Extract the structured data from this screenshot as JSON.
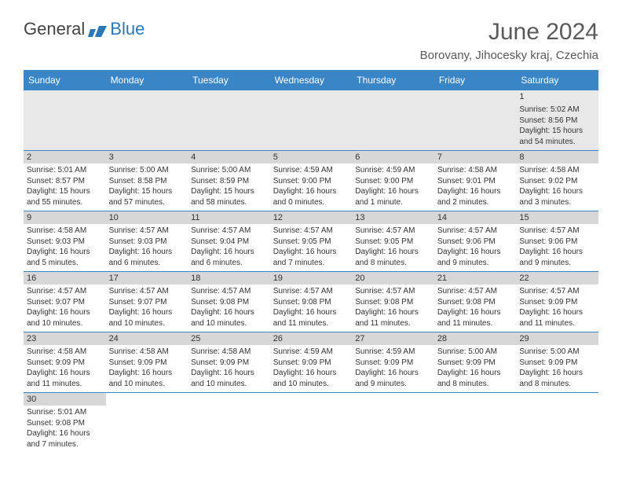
{
  "logo": {
    "part1": "General",
    "part2": "Blue"
  },
  "title": "June 2024",
  "location": "Borovany, Jihocesky kraj, Czechia",
  "header_bg": "#3a85c6",
  "band_bg": "#d7d7d7",
  "first_row_bg": "#e8e8e8",
  "weekdays": [
    "Sunday",
    "Monday",
    "Tuesday",
    "Wednesday",
    "Thursday",
    "Friday",
    "Saturday"
  ],
  "weeks": [
    [
      null,
      null,
      null,
      null,
      null,
      null,
      {
        "n": "1",
        "sr": "Sunrise: 5:02 AM",
        "ss": "Sunset: 8:56 PM",
        "dl": "Daylight: 15 hours and 54 minutes."
      }
    ],
    [
      {
        "n": "2",
        "sr": "Sunrise: 5:01 AM",
        "ss": "Sunset: 8:57 PM",
        "dl": "Daylight: 15 hours and 55 minutes."
      },
      {
        "n": "3",
        "sr": "Sunrise: 5:00 AM",
        "ss": "Sunset: 8:58 PM",
        "dl": "Daylight: 15 hours and 57 minutes."
      },
      {
        "n": "4",
        "sr": "Sunrise: 5:00 AM",
        "ss": "Sunset: 8:59 PM",
        "dl": "Daylight: 15 hours and 58 minutes."
      },
      {
        "n": "5",
        "sr": "Sunrise: 4:59 AM",
        "ss": "Sunset: 9:00 PM",
        "dl": "Daylight: 16 hours and 0 minutes."
      },
      {
        "n": "6",
        "sr": "Sunrise: 4:59 AM",
        "ss": "Sunset: 9:00 PM",
        "dl": "Daylight: 16 hours and 1 minute."
      },
      {
        "n": "7",
        "sr": "Sunrise: 4:58 AM",
        "ss": "Sunset: 9:01 PM",
        "dl": "Daylight: 16 hours and 2 minutes."
      },
      {
        "n": "8",
        "sr": "Sunrise: 4:58 AM",
        "ss": "Sunset: 9:02 PM",
        "dl": "Daylight: 16 hours and 3 minutes."
      }
    ],
    [
      {
        "n": "9",
        "sr": "Sunrise: 4:58 AM",
        "ss": "Sunset: 9:03 PM",
        "dl": "Daylight: 16 hours and 5 minutes."
      },
      {
        "n": "10",
        "sr": "Sunrise: 4:57 AM",
        "ss": "Sunset: 9:03 PM",
        "dl": "Daylight: 16 hours and 6 minutes."
      },
      {
        "n": "11",
        "sr": "Sunrise: 4:57 AM",
        "ss": "Sunset: 9:04 PM",
        "dl": "Daylight: 16 hours and 6 minutes."
      },
      {
        "n": "12",
        "sr": "Sunrise: 4:57 AM",
        "ss": "Sunset: 9:05 PM",
        "dl": "Daylight: 16 hours and 7 minutes."
      },
      {
        "n": "13",
        "sr": "Sunrise: 4:57 AM",
        "ss": "Sunset: 9:05 PM",
        "dl": "Daylight: 16 hours and 8 minutes."
      },
      {
        "n": "14",
        "sr": "Sunrise: 4:57 AM",
        "ss": "Sunset: 9:06 PM",
        "dl": "Daylight: 16 hours and 9 minutes."
      },
      {
        "n": "15",
        "sr": "Sunrise: 4:57 AM",
        "ss": "Sunset: 9:06 PM",
        "dl": "Daylight: 16 hours and 9 minutes."
      }
    ],
    [
      {
        "n": "16",
        "sr": "Sunrise: 4:57 AM",
        "ss": "Sunset: 9:07 PM",
        "dl": "Daylight: 16 hours and 10 minutes."
      },
      {
        "n": "17",
        "sr": "Sunrise: 4:57 AM",
        "ss": "Sunset: 9:07 PM",
        "dl": "Daylight: 16 hours and 10 minutes."
      },
      {
        "n": "18",
        "sr": "Sunrise: 4:57 AM",
        "ss": "Sunset: 9:08 PM",
        "dl": "Daylight: 16 hours and 10 minutes."
      },
      {
        "n": "19",
        "sr": "Sunrise: 4:57 AM",
        "ss": "Sunset: 9:08 PM",
        "dl": "Daylight: 16 hours and 11 minutes."
      },
      {
        "n": "20",
        "sr": "Sunrise: 4:57 AM",
        "ss": "Sunset: 9:08 PM",
        "dl": "Daylight: 16 hours and 11 minutes."
      },
      {
        "n": "21",
        "sr": "Sunrise: 4:57 AM",
        "ss": "Sunset: 9:08 PM",
        "dl": "Daylight: 16 hours and 11 minutes."
      },
      {
        "n": "22",
        "sr": "Sunrise: 4:57 AM",
        "ss": "Sunset: 9:09 PM",
        "dl": "Daylight: 16 hours and 11 minutes."
      }
    ],
    [
      {
        "n": "23",
        "sr": "Sunrise: 4:58 AM",
        "ss": "Sunset: 9:09 PM",
        "dl": "Daylight: 16 hours and 11 minutes."
      },
      {
        "n": "24",
        "sr": "Sunrise: 4:58 AM",
        "ss": "Sunset: 9:09 PM",
        "dl": "Daylight: 16 hours and 10 minutes."
      },
      {
        "n": "25",
        "sr": "Sunrise: 4:58 AM",
        "ss": "Sunset: 9:09 PM",
        "dl": "Daylight: 16 hours and 10 minutes."
      },
      {
        "n": "26",
        "sr": "Sunrise: 4:59 AM",
        "ss": "Sunset: 9:09 PM",
        "dl": "Daylight: 16 hours and 10 minutes."
      },
      {
        "n": "27",
        "sr": "Sunrise: 4:59 AM",
        "ss": "Sunset: 9:09 PM",
        "dl": "Daylight: 16 hours and 9 minutes."
      },
      {
        "n": "28",
        "sr": "Sunrise: 5:00 AM",
        "ss": "Sunset: 9:09 PM",
        "dl": "Daylight: 16 hours and 8 minutes."
      },
      {
        "n": "29",
        "sr": "Sunrise: 5:00 AM",
        "ss": "Sunset: 9:09 PM",
        "dl": "Daylight: 16 hours and 8 minutes."
      }
    ],
    [
      {
        "n": "30",
        "sr": "Sunrise: 5:01 AM",
        "ss": "Sunset: 9:08 PM",
        "dl": "Daylight: 16 hours and 7 minutes."
      },
      null,
      null,
      null,
      null,
      null,
      null
    ]
  ]
}
